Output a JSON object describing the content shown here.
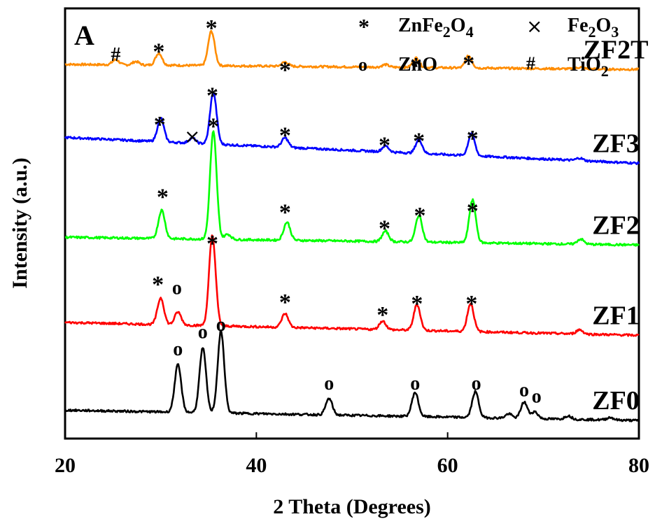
{
  "chart_data": {
    "type": "line",
    "panel_label": "A",
    "xlabel": "2  Theta (Degrees)",
    "ylabel": "Intensity (a.u.)",
    "xlim": [
      20,
      80
    ],
    "x_ticks": [
      {
        "value": 20,
        "label": "20"
      },
      {
        "value": 40,
        "label": "40"
      },
      {
        "value": 60,
        "label": "60"
      },
      {
        "value": 80,
        "label": "80"
      }
    ],
    "legend": [
      {
        "marker": "*",
        "name": "ZnFe",
        "sub1": "2",
        "mid": "O",
        "sub2": "4"
      },
      {
        "marker": "×",
        "name": "Fe",
        "sub1": "2",
        "mid": "O",
        "sub2": "3"
      },
      {
        "marker": "o",
        "name": "ZnO",
        "sub1": "",
        "mid": "",
        "sub2": ""
      },
      {
        "marker": "#",
        "name": "TiO",
        "sub1": "2",
        "mid": "",
        "sub2": ""
      }
    ],
    "series": [
      {
        "name": "ZF2T",
        "color": "#ff8c00",
        "baseline": 0.858,
        "slope": 0.012,
        "peaks": [
          [
            25.3,
            0.012
          ],
          [
            27.4,
            0.008
          ],
          [
            29.8,
            0.028
          ],
          [
            35.3,
            0.08
          ],
          [
            43.0,
            0.01
          ],
          [
            53.5,
            0.006
          ],
          [
            56.7,
            0.022
          ],
          [
            62.2,
            0.028
          ],
          [
            73.9,
            0.004
          ]
        ],
        "markers": [
          {
            "symbol": "#",
            "x": 25.3,
            "y": 0.894
          },
          {
            "symbol": "*",
            "x": 29.8,
            "y": 0.908
          },
          {
            "symbol": "*",
            "x": 35.3,
            "y": 0.963
          },
          {
            "symbol": "*",
            "x": 43.0,
            "y": 0.865
          },
          {
            "symbol": "*",
            "x": 56.7,
            "y": 0.875
          },
          {
            "symbol": "*",
            "x": 62.2,
            "y": 0.88
          }
        ]
      },
      {
        "name": "ZF3",
        "color": "#0000ff",
        "baseline": 0.64,
        "slope": 0.06,
        "peaks": [
          [
            30.0,
            0.055
          ],
          [
            33.3,
            0.012
          ],
          [
            35.5,
            0.12
          ],
          [
            43.0,
            0.022
          ],
          [
            53.5,
            0.014
          ],
          [
            57.0,
            0.032
          ],
          [
            62.5,
            0.052
          ],
          [
            73.8,
            0.006
          ]
        ],
        "markers": [
          {
            "symbol": "*",
            "x": 29.9,
            "y": 0.738
          },
          {
            "symbol": "×",
            "x": 33.3,
            "y": 0.703
          },
          {
            "symbol": "*",
            "x": 35.4,
            "y": 0.806
          },
          {
            "symbol": "*",
            "x": 43.0,
            "y": 0.713
          },
          {
            "symbol": "*",
            "x": 53.4,
            "y": 0.69
          },
          {
            "symbol": "*",
            "x": 57.0,
            "y": 0.7
          },
          {
            "symbol": "*",
            "x": 62.6,
            "y": 0.706
          }
        ]
      },
      {
        "name": "ZF2",
        "color": "#00ff00",
        "baseline": 0.45,
        "slope": 0.018,
        "peaks": [
          [
            30.1,
            0.066
          ],
          [
            35.5,
            0.25
          ],
          [
            37.0,
            0.012
          ],
          [
            43.2,
            0.042
          ],
          [
            53.5,
            0.024
          ],
          [
            57.0,
            0.062
          ],
          [
            62.6,
            0.1
          ],
          [
            73.9,
            0.012
          ]
        ],
        "markers": [
          {
            "symbol": "*",
            "x": 30.2,
            "y": 0.57
          },
          {
            "symbol": "*",
            "x": 35.5,
            "y": 0.734
          },
          {
            "symbol": "*",
            "x": 43.0,
            "y": 0.534
          },
          {
            "symbol": "*",
            "x": 53.4,
            "y": 0.497
          },
          {
            "symbol": "*",
            "x": 57.1,
            "y": 0.527
          },
          {
            "symbol": "*",
            "x": 62.6,
            "y": 0.537
          }
        ]
      },
      {
        "name": "ZF1",
        "color": "#ff0000",
        "baseline": 0.24,
        "slope": 0.03,
        "peaks": [
          [
            30.0,
            0.062
          ],
          [
            31.8,
            0.03
          ],
          [
            35.4,
            0.21
          ],
          [
            43.0,
            0.032
          ],
          [
            53.2,
            0.02
          ],
          [
            56.8,
            0.06
          ],
          [
            62.4,
            0.065
          ],
          [
            73.8,
            0.01
          ]
        ],
        "markers": [
          {
            "symbol": "*",
            "x": 29.7,
            "y": 0.367
          },
          {
            "symbol": "o",
            "x": 31.7,
            "y": 0.352
          },
          {
            "symbol": "*",
            "x": 35.4,
            "y": 0.462
          },
          {
            "symbol": "*",
            "x": 43.0,
            "y": 0.325
          },
          {
            "symbol": "*",
            "x": 53.2,
            "y": 0.296
          },
          {
            "symbol": "*",
            "x": 56.8,
            "y": 0.322
          },
          {
            "symbol": "*",
            "x": 62.5,
            "y": 0.322
          }
        ]
      },
      {
        "name": "ZF0",
        "color": "#000000",
        "baseline": 0.042,
        "slope": 0.024,
        "peaks": [
          [
            31.8,
            0.11
          ],
          [
            34.4,
            0.15
          ],
          [
            36.3,
            0.19
          ],
          [
            47.6,
            0.038
          ],
          [
            56.6,
            0.056
          ],
          [
            62.9,
            0.06
          ],
          [
            66.4,
            0.01
          ],
          [
            68.0,
            0.038
          ],
          [
            69.1,
            0.016
          ],
          [
            72.6,
            0.008
          ],
          [
            77.0,
            0.006
          ]
        ],
        "markers": [
          {
            "symbol": "o",
            "x": 31.8,
            "y": 0.21
          },
          {
            "symbol": "o",
            "x": 34.4,
            "y": 0.25
          },
          {
            "symbol": "o",
            "x": 36.3,
            "y": 0.267
          },
          {
            "symbol": "o",
            "x": 47.6,
            "y": 0.13
          },
          {
            "symbol": "o",
            "x": 56.6,
            "y": 0.13
          },
          {
            "symbol": "o",
            "x": 63.0,
            "y": 0.13
          },
          {
            "symbol": "o",
            "x": 68.0,
            "y": 0.115
          },
          {
            "symbol": "o",
            "x": 69.3,
            "y": 0.1
          }
        ]
      }
    ]
  }
}
